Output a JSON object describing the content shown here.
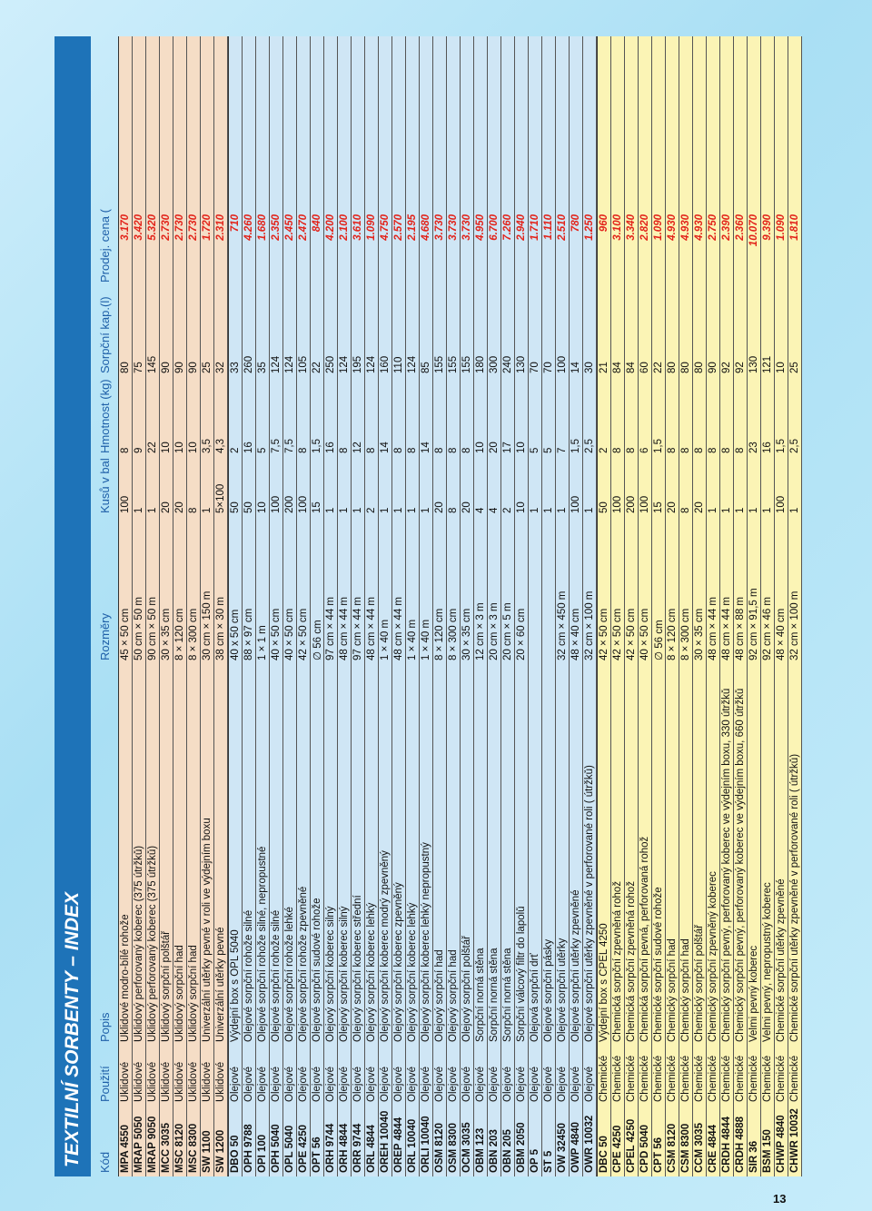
{
  "title": "TEXTILNÍ SORBENTY – INDEX",
  "headers": {
    "kod": "Kód",
    "pouziti": "Použití",
    "popis": "Popis",
    "rozmery": "Rozměry",
    "kusu": "Kusů v bal.",
    "hmotnost": "Hmotnost (kg)",
    "sorpcni": "Sorpční kap.(l)",
    "cena": "Prodej. cena (Kč)"
  },
  "sections": [
    {
      "rows": [
        {
          "kod": "MPA 4550",
          "pouziti": "Úklidové",
          "popis": "Úklidové modro-bílé rohože",
          "rozmery": "45 × 50 cm",
          "kusu": "100",
          "hmotnost": "8",
          "sorpcni": "80",
          "cena": "3.170"
        },
        {
          "kod": "MRAP 5050",
          "pouziti": "Úklidové",
          "popis": "Úklidový perforovaný koberec (375 útržků)",
          "rozmery": "50 cm × 50 m",
          "kusu": "1",
          "hmotnost": "9",
          "sorpcni": "75",
          "cena": "3.420"
        },
        {
          "kod": "MRAP 9050",
          "pouziti": "Úklidové",
          "popis": "Úklidový perforovaný koberec (375 útržků)",
          "rozmery": "90 cm × 50 m",
          "kusu": "1",
          "hmotnost": "22",
          "sorpcni": "145",
          "cena": "5.320"
        },
        {
          "kod": "MCC 3035",
          "pouziti": "Úklidové",
          "popis": "Úklidový sorpční polštář",
          "rozmery": "30 × 35 cm",
          "kusu": "20",
          "hmotnost": "10",
          "sorpcni": "90",
          "cena": "2.730"
        },
        {
          "kod": "MSC 8120",
          "pouziti": "Úklidové",
          "popis": "Úklidový sorpční had",
          "rozmery": "8 × 120 cm",
          "kusu": "20",
          "hmotnost": "10",
          "sorpcni": "90",
          "cena": "2.730"
        },
        {
          "kod": "MSC 8300",
          "pouziti": "Úklidové",
          "popis": "Úklidový sorpční had",
          "rozmery": "8 × 300 cm",
          "kusu": "8",
          "hmotnost": "10",
          "sorpcni": "90",
          "cena": "2.730"
        },
        {
          "kod": "SW 1100",
          "pouziti": "Úklidové",
          "popis": "Univerzální utěrky pevné v roli ve výdejním boxu",
          "rozmery": "30 cm × 150 m",
          "kusu": "1",
          "hmotnost": "3,5",
          "sorpcni": "25",
          "cena": "1.720"
        },
        {
          "kod": "SW 1200",
          "pouziti": "Úklidové",
          "popis": "Univerzální utěrky pevné",
          "rozmery": "38 cm × 30 m",
          "kusu": "5×100",
          "hmotnost": "4,3",
          "sorpcni": "32",
          "cena": "2.310"
        }
      ]
    },
    {
      "rows": [
        {
          "kod": "DBO 50",
          "pouziti": "Olejové",
          "popis": "Výdejní box s OPL 5040",
          "rozmery": "40 x 50 cm",
          "kusu": "50",
          "hmotnost": "2",
          "sorpcni": "33",
          "cena": "710"
        },
        {
          "kod": "OPH 9788",
          "pouziti": "Olejové",
          "popis": "Olejové sorpční rohože silné",
          "rozmery": "88 × 97 cm",
          "kusu": "50",
          "hmotnost": "16",
          "sorpcni": "260",
          "cena": "4.260"
        },
        {
          "kod": "OPI 100",
          "pouziti": "Olejové",
          "popis": "Olejové sorpční rohože silné, nepropustné",
          "rozmery": "1 × 1 m",
          "kusu": "10",
          "hmotnost": "5",
          "sorpcni": "35",
          "cena": "1.680"
        },
        {
          "kod": "OPH 5040",
          "pouziti": "Olejové",
          "popis": "Olejové sorpční rohože silné",
          "rozmery": "40 × 50 cm",
          "kusu": "100",
          "hmotnost": "7,5",
          "sorpcni": "124",
          "cena": "2.350"
        },
        {
          "kod": "OPL 5040",
          "pouziti": "Olejové",
          "popis": "Olejové sorpční rohože lehké",
          "rozmery": "40 × 50 cm",
          "kusu": "200",
          "hmotnost": "7,5",
          "sorpcni": "124",
          "cena": "2.450"
        },
        {
          "kod": "OPE 4250",
          "pouziti": "Olejové",
          "popis": "Olejové sorpční rohože zpevněné",
          "rozmery": "42 × 50 cm",
          "kusu": "100",
          "hmotnost": "8",
          "sorpcni": "105",
          "cena": "2.470"
        },
        {
          "kod": "OPT 56",
          "pouziti": "Olejové",
          "popis": "Olejové sorpční sudové rohože",
          "rozmery": "∅ 56 cm",
          "kusu": "15",
          "hmotnost": "1,5",
          "sorpcni": "22",
          "cena": "840"
        },
        {
          "kod": "ORH 9744",
          "pouziti": "Olejové",
          "popis": "Olejový sorpční koberec silný",
          "rozmery": "97 cm × 44 m",
          "kusu": "1",
          "hmotnost": "16",
          "sorpcni": "250",
          "cena": "4.200"
        },
        {
          "kod": "ORH 4844",
          "pouziti": "Olejové",
          "popis": "Olejový sorpční koberec silný",
          "rozmery": "48 cm × 44 m",
          "kusu": "1",
          "hmotnost": "8",
          "sorpcni": "124",
          "cena": "2.100"
        },
        {
          "kod": "ORR 9744",
          "pouziti": "Olejové",
          "popis": "Olejový sorpční koberec střední",
          "rozmery": "97 cm × 44 m",
          "kusu": "1",
          "hmotnost": "12",
          "sorpcni": "195",
          "cena": "3.610"
        },
        {
          "kod": "ORL 4844",
          "pouziti": "Olejové",
          "popis": "Olejový sorpční koberec lehký",
          "rozmery": "48 cm × 44 m",
          "kusu": "2",
          "hmotnost": "8",
          "sorpcni": "124",
          "cena": "1.090"
        },
        {
          "kod": "OREH 10040",
          "pouziti": "Olejové",
          "popis": "Olejový sorpční koberec modrý zpevněný",
          "rozmery": "1 × 40 m",
          "kusu": "1",
          "hmotnost": "14",
          "sorpcni": "160",
          "cena": "4.750"
        },
        {
          "kod": "OREP 4844",
          "pouziti": "Olejové",
          "popis": "Olejový sorpční koberec zpevněný",
          "rozmery": "48 cm × 44 m",
          "kusu": "1",
          "hmotnost": "8",
          "sorpcni": "110",
          "cena": "2.570"
        },
        {
          "kod": "ORL 10040",
          "pouziti": "Olejové",
          "popis": "Olejový sorpční koberec lehký",
          "rozmery": "1 × 40 m",
          "kusu": "1",
          "hmotnost": "8",
          "sorpcni": "124",
          "cena": "2.195"
        },
        {
          "kod": "ORLI 10040",
          "pouziti": "Olejové",
          "popis": "Olejový sorpční koberec lehký nepropustný",
          "rozmery": "1 × 40 m",
          "kusu": "1",
          "hmotnost": "14",
          "sorpcni": "85",
          "cena": "4.680"
        },
        {
          "kod": "OSM 8120",
          "pouziti": "Olejové",
          "popis": "Olejový sorpční had",
          "rozmery": "8 × 120 cm",
          "kusu": "20",
          "hmotnost": "8",
          "sorpcni": "155",
          "cena": "3.730"
        },
        {
          "kod": "OSM 8300",
          "pouziti": "Olejové",
          "popis": "Olejový sorpční had",
          "rozmery": "8 × 300 cm",
          "kusu": "8",
          "hmotnost": "8",
          "sorpcni": "155",
          "cena": "3.730"
        },
        {
          "kod": "OCM 3035",
          "pouziti": "Olejové",
          "popis": "Olejový sorpční polštář",
          "rozmery": "30 × 35 cm",
          "kusu": "20",
          "hmotnost": "8",
          "sorpcni": "155",
          "cena": "3.730"
        },
        {
          "kod": "OBM 123",
          "pouziti": "Olejové",
          "popis": "Sorpční norná stěna",
          "rozmery": "12 cm × 3 m",
          "kusu": "4",
          "hmotnost": "10",
          "sorpcni": "180",
          "cena": "4.950"
        },
        {
          "kod": "OBN 203",
          "pouziti": "Olejové",
          "popis": "Sorpční norná stěna",
          "rozmery": "20 cm × 3 m",
          "kusu": "4",
          "hmotnost": "20",
          "sorpcni": "300",
          "cena": "6.700"
        },
        {
          "kod": "OBN 205",
          "pouziti": "Olejové",
          "popis": "Sorpční norná stěna",
          "rozmery": "20 cm × 5 m",
          "kusu": "2",
          "hmotnost": "17",
          "sorpcni": "240",
          "cena": "7.260"
        },
        {
          "kod": "OBM 2050",
          "pouziti": "Olejové",
          "popis": "Sorpční válcový filtr do lapolů",
          "rozmery": "20 × 60 cm",
          "kusu": "10",
          "hmotnost": "10",
          "sorpcni": "130",
          "cena": "2.940"
        },
        {
          "kod": "OP 5",
          "pouziti": "Olejové",
          "popis": "Olejová sorpční drť",
          "rozmery": "",
          "kusu": "1",
          "hmotnost": "5",
          "sorpcni": "70",
          "cena": "1.710"
        },
        {
          "kod": "ST 5",
          "pouziti": "Olejové",
          "popis": "Olejové sorpční pásky",
          "rozmery": "",
          "kusu": "1",
          "hmotnost": "5",
          "sorpcni": "70",
          "cena": "1.110"
        },
        {
          "kod": "OW 32450",
          "pouziti": "Olejové",
          "popis": "Olejové sorpční utěrky",
          "rozmery": "32 cm × 450 m",
          "kusu": "1",
          "hmotnost": "7",
          "sorpcni": "100",
          "cena": "2.510"
        },
        {
          "kod": "OWP 4840",
          "pouziti": "Olejové",
          "popis": "Olejové sorpční utěrky zpevněné",
          "rozmery": "48 × 40 cm",
          "kusu": "100",
          "hmotnost": "1,5",
          "sorpcni": "14",
          "cena": "780"
        },
        {
          "kod": "OWR 10032",
          "pouziti": "Olejové",
          "popis": "Olejové sorpční utěrky zpevněné v perforované roli ( útržků)",
          "rozmery": "32 cm × 100 m",
          "kusu": "1",
          "hmotnost": "2,5",
          "sorpcni": "30",
          "cena": "1.250"
        }
      ]
    },
    {
      "rows": [
        {
          "kod": "DBC 50",
          "pouziti": "Chemické",
          "popis": "Výdejní box s CPEL 4250",
          "rozmery": "42 × 50 cm",
          "kusu": "50",
          "hmotnost": "2",
          "sorpcni": "21",
          "cena": "960"
        },
        {
          "kod": "CPE 4250",
          "pouziti": "Chemické",
          "popis": "Chemická sorpční zpevněná rohož",
          "rozmery": "42 × 50 cm",
          "kusu": "100",
          "hmotnost": "8",
          "sorpcni": "84",
          "cena": "3.100"
        },
        {
          "kod": "CPEL 4250",
          "pouziti": "Chemické",
          "popis": "Chemická sorpční zpevněná rohož",
          "rozmery": "42 × 50 cm",
          "kusu": "200",
          "hmotnost": "8",
          "sorpcni": "84",
          "cena": "3.340"
        },
        {
          "kod": "CPD 5040",
          "pouziti": "Chemické",
          "popis": "Chemická sorpční pevná, perforovaná rohož",
          "rozmery": "40 × 50 cm",
          "kusu": "100",
          "hmotnost": "6",
          "sorpcni": "60",
          "cena": "2.820"
        },
        {
          "kod": "CPT 56",
          "pouziti": "Chemické",
          "popis": "Chemické sorpční sudové rohože",
          "rozmery": "∅ 56 cm",
          "kusu": "15",
          "hmotnost": "1,5",
          "sorpcni": "22",
          "cena": "1.090"
        },
        {
          "kod": "CSM 8120",
          "pouziti": "Chemické",
          "popis": "Chemický sorpční had",
          "rozmery": "8 × 120 cm",
          "kusu": "20",
          "hmotnost": "8",
          "sorpcni": "80",
          "cena": "4.930"
        },
        {
          "kod": "CSM 8300",
          "pouziti": "Chemické",
          "popis": "Chemický sorpční had",
          "rozmery": "8 × 300 cm",
          "kusu": "8",
          "hmotnost": "8",
          "sorpcni": "80",
          "cena": "4.930"
        },
        {
          "kod": "CCM 3035",
          "pouziti": "Chemické",
          "popis": "Chemický sorpční polštář",
          "rozmery": "30 × 35 cm",
          "kusu": "20",
          "hmotnost": "8",
          "sorpcni": "80",
          "cena": "4.930"
        },
        {
          "kod": "CRE 4844",
          "pouziti": "Chemické",
          "popis": "Chemický sorpční zpevněný koberec",
          "rozmery": "48 cm × 44 m",
          "kusu": "1",
          "hmotnost": "8",
          "sorpcni": "90",
          "cena": "2.750"
        },
        {
          "kod": "CRDH 4844",
          "pouziti": "Chemické",
          "popis": "Chemický sorpční pevný, perforovaný koberec ve výdejním boxu, 330 útržků",
          "rozmery": "48 cm × 44 m",
          "kusu": "1",
          "hmotnost": "8",
          "sorpcni": "92",
          "cena": "2.390"
        },
        {
          "kod": "CRDH 4888",
          "pouziti": "Chemické",
          "popis": "Chemický sorpční pevný, perforovaný koberec ve výdejním boxu, 660 útržků",
          "rozmery": "48 cm × 88 m",
          "kusu": "1",
          "hmotnost": "8",
          "sorpcni": "92",
          "cena": "2.360"
        },
        {
          "kod": "SIR 36",
          "pouziti": "Chemické",
          "popis": "Velmi pevný koberec",
          "rozmery": "92 cm × 91,5 m",
          "kusu": "1",
          "hmotnost": "23",
          "sorpcni": "130",
          "cena": "10.070"
        },
        {
          "kod": "BSM 150",
          "pouziti": "Chemické",
          "popis": "Velmi pevný, nepropustný koberec",
          "rozmery": "92 cm × 46 m",
          "kusu": "1",
          "hmotnost": "16",
          "sorpcni": "121",
          "cena": "9.390"
        },
        {
          "kod": "CHWP 4840",
          "pouziti": "Chemické",
          "popis": "Chemické sorpční utěrky zpevněné",
          "rozmery": "48 × 40 cm",
          "kusu": "100",
          "hmotnost": "1,5",
          "sorpcni": "10",
          "cena": "1.090"
        },
        {
          "kod": "CHWR 10032",
          "pouziti": "Chemické",
          "popis": "Chemické sorpční utěrky zpevněné v perforované roli ( útržků)",
          "rozmery": "32 cm × 100 m",
          "kusu": "1",
          "hmotnost": "2,5",
          "sorpcni": "25",
          "cena": "1.810"
        }
      ]
    }
  ],
  "page_number": "13"
}
